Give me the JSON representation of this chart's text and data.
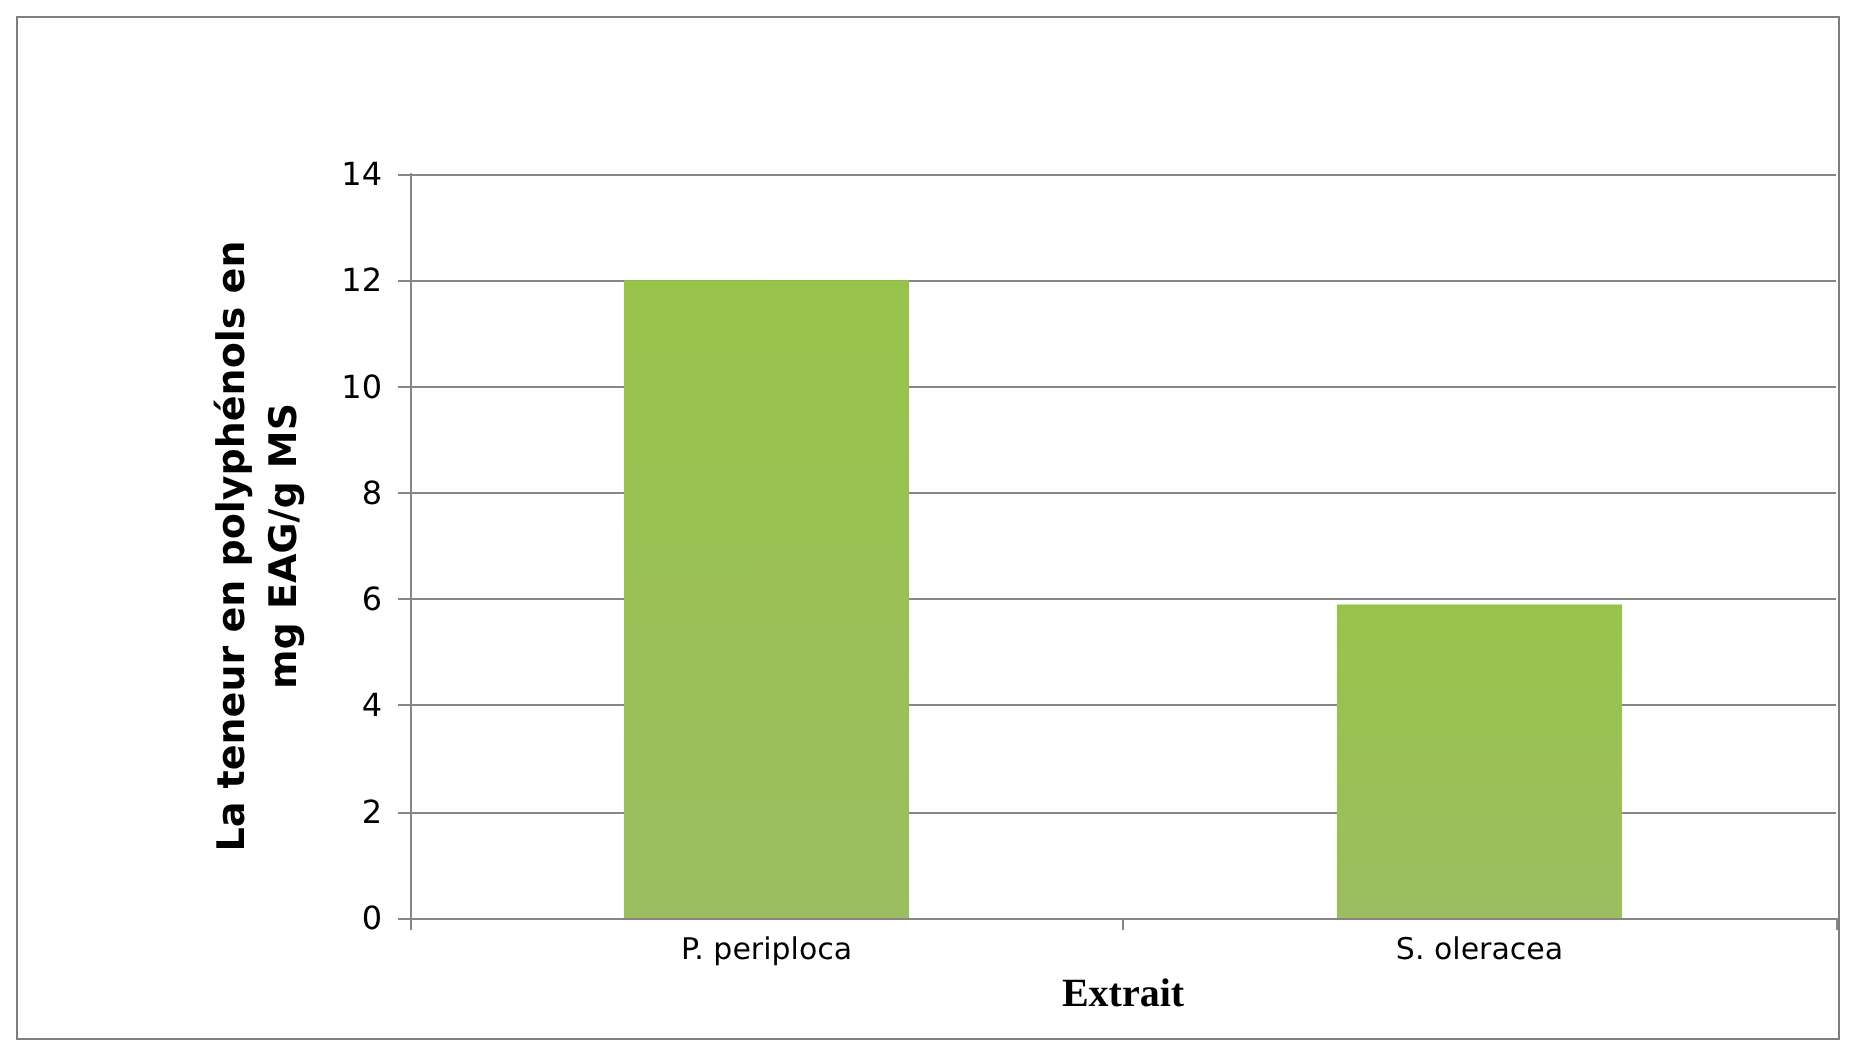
{
  "chart_data": {
    "type": "bar",
    "xlabel": "Extrait",
    "ylabel": "La teneur en polyphénols en\nmg EAG/g MS",
    "categories": [
      "P. periploca",
      "S. oleracea"
    ],
    "values": [
      12.0,
      5.9
    ],
    "color": "#8bb245",
    "ylim": [
      0,
      14
    ],
    "yticks": [
      0,
      2,
      4,
      6,
      8,
      10,
      12,
      14
    ],
    "grid": "y"
  }
}
